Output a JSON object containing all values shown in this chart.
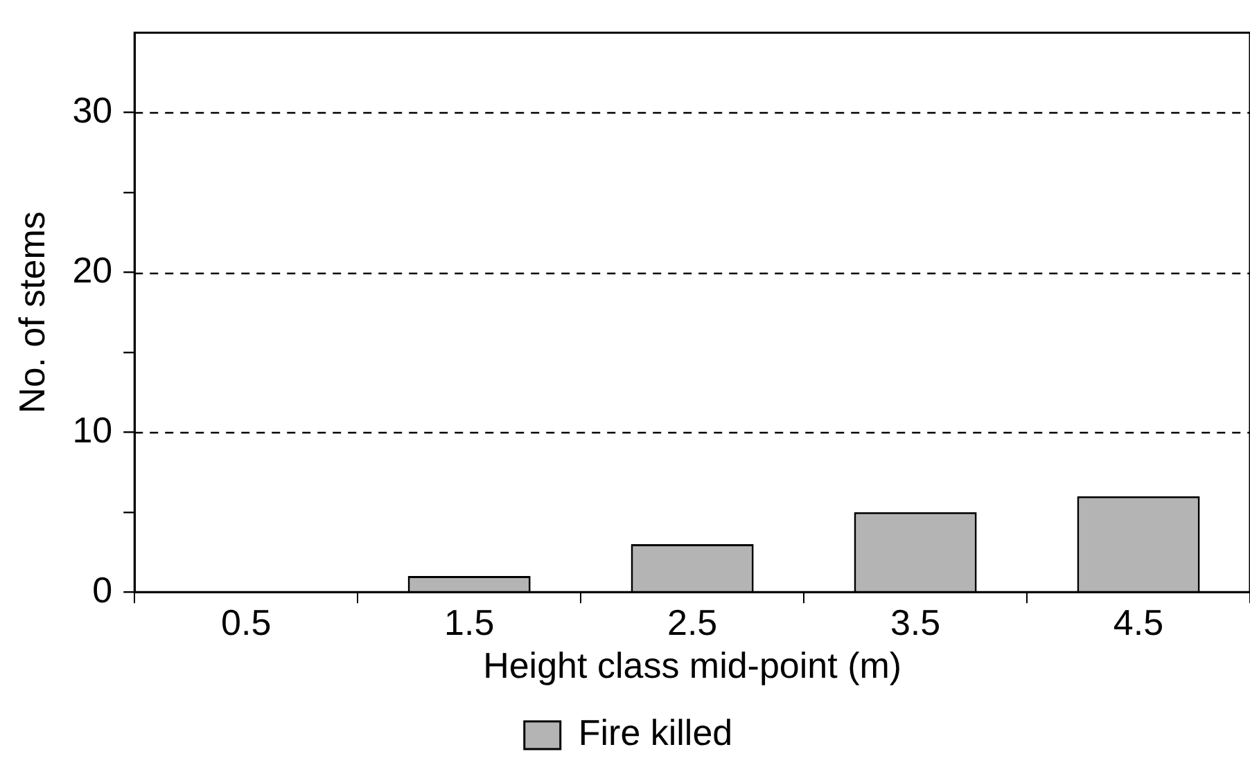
{
  "chart_data": {
    "type": "bar",
    "xlabel": "Height class mid-point (m)",
    "ylabel": "No. of stems",
    "categories": [
      "0.5",
      "1.5",
      "2.5",
      "3.5",
      "4.5"
    ],
    "series": [
      {
        "name": "Fire killed",
        "color": "#b4b4b4",
        "values": [
          0,
          1,
          3,
          5,
          6
        ]
      }
    ],
    "ylim": [
      0,
      35
    ],
    "yticks": [
      0,
      {
        "value": 5,
        "label": null
      },
      10,
      {
        "value": 15,
        "label": null
      },
      20,
      {
        "value": 25,
        "label": null
      },
      30
    ],
    "grid": "y",
    "line_style": "dashed",
    "legend": "bottom"
  }
}
